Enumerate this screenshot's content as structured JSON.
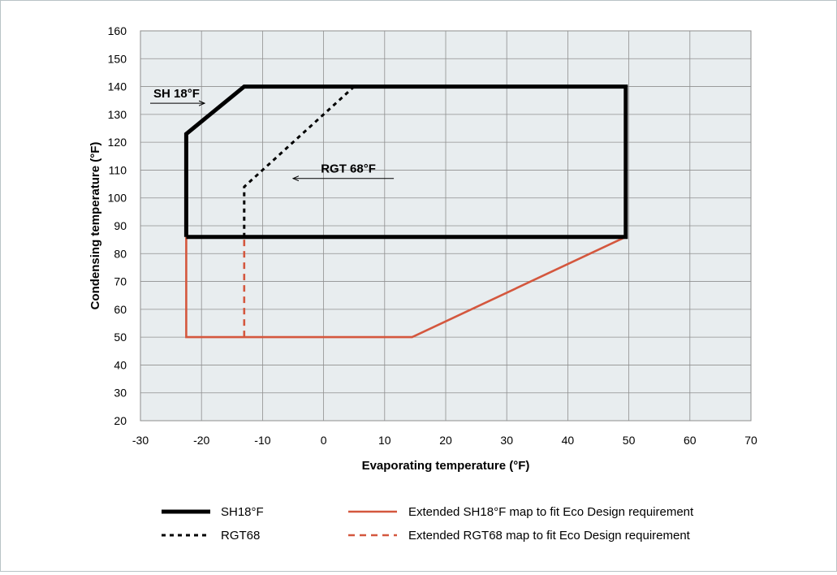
{
  "chart_data": {
    "type": "line",
    "title": "",
    "xlabel": "Evaporating temperature (°F)",
    "ylabel": "Condensing temperature (°F)",
    "xlim": [
      -30,
      70
    ],
    "ylim": [
      20,
      160
    ],
    "x_ticks": [
      -30,
      -20,
      -10,
      0,
      10,
      20,
      30,
      40,
      50,
      60,
      70
    ],
    "y_ticks": [
      20,
      30,
      40,
      50,
      60,
      70,
      80,
      90,
      100,
      110,
      120,
      130,
      140,
      150,
      160
    ],
    "grid": true,
    "legend_position": "bottom",
    "background_color": "#e8edef",
    "series": [
      {
        "name": "SH18°F",
        "style": "solid",
        "color": "#000000",
        "points": [
          [
            -22.5,
            86
          ],
          [
            -22.5,
            123
          ],
          [
            -13,
            140
          ],
          [
            49.5,
            140
          ],
          [
            49.5,
            86
          ],
          [
            -22.5,
            86
          ]
        ]
      },
      {
        "name": "RGT68",
        "style": "dashed",
        "color": "#000000",
        "points": [
          [
            -13,
            86
          ],
          [
            -13,
            104
          ],
          [
            5,
            140
          ]
        ]
      },
      {
        "name": "Extended SH18°F map to fit Eco Design requirement",
        "style": "solid",
        "color": "#d4573e",
        "points": [
          [
            -22.5,
            86
          ],
          [
            -22.5,
            50
          ],
          [
            14.5,
            50
          ],
          [
            49.5,
            86
          ],
          [
            -22.5,
            86
          ]
        ]
      },
      {
        "name": "Extended RGT68 map to fit Eco Design requirement",
        "style": "dashed",
        "color": "#d4573e",
        "points": [
          [
            -13,
            50
          ],
          [
            -13,
            86
          ]
        ]
      }
    ],
    "annotations": [
      {
        "text": "SH 18°F",
        "arrow_from": [
          -30,
          134
        ],
        "arrow_to": [
          -19.5,
          134
        ]
      },
      {
        "text": "RGT 68°F",
        "arrow_from": [
          11.5,
          107
        ],
        "arrow_to": [
          -5,
          107
        ]
      }
    ]
  }
}
